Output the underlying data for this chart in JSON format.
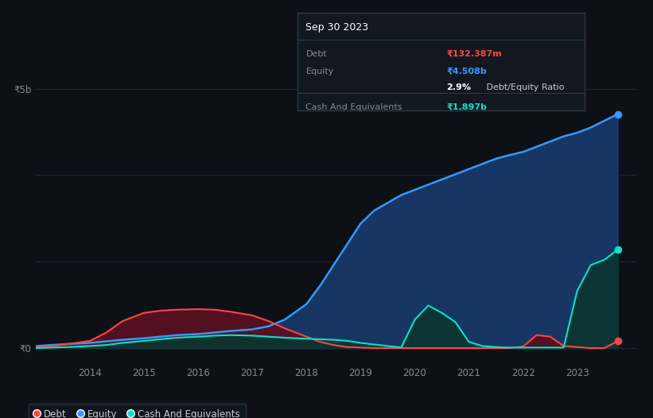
{
  "bg_color": "#0d1117",
  "plot_bg_color": "#0d1117",
  "grid_color": "#1c2733",
  "years": [
    2013.0,
    2013.3,
    2013.6,
    2014.0,
    2014.3,
    2014.6,
    2015.0,
    2015.3,
    2015.6,
    2016.0,
    2016.3,
    2016.6,
    2017.0,
    2017.3,
    2017.6,
    2018.0,
    2018.25,
    2018.5,
    2018.75,
    2019.0,
    2019.25,
    2019.5,
    2019.75,
    2020.0,
    2020.25,
    2020.5,
    2020.75,
    2021.0,
    2021.25,
    2021.5,
    2021.75,
    2022.0,
    2022.25,
    2022.5,
    2022.75,
    2023.0,
    2023.25,
    2023.5,
    2023.75
  ],
  "equity": [
    0.04,
    0.06,
    0.08,
    0.1,
    0.13,
    0.16,
    0.19,
    0.22,
    0.25,
    0.27,
    0.3,
    0.33,
    0.36,
    0.42,
    0.55,
    0.85,
    1.2,
    1.6,
    2.0,
    2.4,
    2.65,
    2.8,
    2.95,
    3.05,
    3.15,
    3.25,
    3.35,
    3.45,
    3.55,
    3.65,
    3.72,
    3.78,
    3.88,
    3.98,
    4.08,
    4.15,
    4.25,
    4.38,
    4.508
  ],
  "debt": [
    0.01,
    0.04,
    0.08,
    0.14,
    0.3,
    0.52,
    0.68,
    0.72,
    0.74,
    0.75,
    0.74,
    0.7,
    0.63,
    0.52,
    0.38,
    0.22,
    0.12,
    0.06,
    0.02,
    0.01,
    0.0,
    0.0,
    0.0,
    0.0,
    0.0,
    0.0,
    0.0,
    0.0,
    0.0,
    0.0,
    0.0,
    0.03,
    0.25,
    0.22,
    0.04,
    0.02,
    0.0,
    0.0,
    0.132
  ],
  "cash": [
    0.0,
    0.01,
    0.02,
    0.04,
    0.06,
    0.1,
    0.14,
    0.17,
    0.2,
    0.22,
    0.24,
    0.25,
    0.24,
    0.22,
    0.2,
    0.18,
    0.17,
    0.16,
    0.14,
    0.1,
    0.07,
    0.04,
    0.01,
    0.55,
    0.82,
    0.68,
    0.5,
    0.12,
    0.04,
    0.02,
    0.01,
    0.01,
    0.01,
    0.01,
    0.01,
    1.1,
    1.6,
    1.7,
    1.897
  ],
  "equity_color": "#3399ff",
  "debt_color": "#ff4444",
  "cash_color": "#00e5cc",
  "equity_fill": "#1a3a6a",
  "debt_fill": "#5a1020",
  "cash_fill": "#0a3530",
  "ylim": [
    -0.3,
    5.5
  ],
  "xlim": [
    2013.0,
    2024.1
  ],
  "y_ticks": [
    0,
    5
  ],
  "y_tick_labels": [
    "₹0",
    "₹5b"
  ],
  "x_ticks": [
    2014,
    2015,
    2016,
    2017,
    2018,
    2019,
    2020,
    2021,
    2022,
    2023
  ],
  "x_tick_labels": [
    "2014",
    "2015",
    "2016",
    "2017",
    "2018",
    "2019",
    "2020",
    "2021",
    "2022",
    "2023"
  ],
  "info_title": "Sep 30 2023",
  "info_rows": [
    {
      "label": "Debt",
      "value": "₹132.387m",
      "value_color": "#ff4444",
      "bold_value": true
    },
    {
      "label": "Equity",
      "value": "₹4.508b",
      "value_color": "#3399ff",
      "bold_value": true
    },
    {
      "label": "",
      "value": "2.9% Debt/Equity Ratio",
      "value_color": "#cccccc",
      "bold_value": false,
      "bold_prefix": "2.9%"
    },
    {
      "label": "Cash And Equivalents",
      "value": "₹1.897b",
      "value_color": "#00e5cc",
      "bold_value": true
    }
  ],
  "legend_items": [
    {
      "label": "Debt",
      "color": "#ff4444"
    },
    {
      "label": "Equity",
      "color": "#3399ff"
    },
    {
      "label": "Cash And Equivalents",
      "color": "#00e5cc"
    }
  ]
}
